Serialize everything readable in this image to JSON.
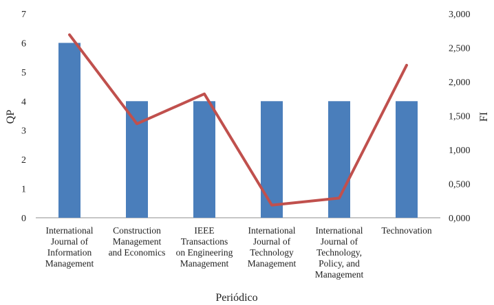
{
  "chart_data": {
    "type": "bar+line",
    "xlabel": "Periódico",
    "ylabel": "QP",
    "y2label": "FI",
    "ylim": [
      0,
      7
    ],
    "y2lim": [
      0,
      3
    ],
    "y_ticks": [
      "0",
      "1",
      "2",
      "3",
      "4",
      "5",
      "6",
      "7"
    ],
    "y2_ticks": [
      "0,000",
      "0,500",
      "1,000",
      "1,500",
      "2,000",
      "2,500",
      "3,000"
    ],
    "categories": [
      [
        "International",
        "Journal of",
        "Information",
        "Management"
      ],
      [
        "Construction",
        "Management",
        "and Economics"
      ],
      [
        "IEEE",
        "Transactions",
        "on Engineering",
        "Management"
      ],
      [
        "International",
        "Journal of",
        "Technology",
        "Management"
      ],
      [
        "International",
        "Journal of",
        "Technology,",
        "Policy, and",
        "Management"
      ],
      [
        "Technovation"
      ]
    ],
    "series": [
      {
        "name": "QP",
        "type": "bar",
        "axis": "left",
        "color": "#4a7ebb",
        "values": [
          6,
          4,
          4,
          4,
          4,
          4
        ]
      },
      {
        "name": "FI",
        "type": "line",
        "axis": "right",
        "color": "#c0504d",
        "values": [
          2.691,
          1.382,
          1.821,
          0.186,
          0.289,
          2.243
        ]
      }
    ]
  }
}
